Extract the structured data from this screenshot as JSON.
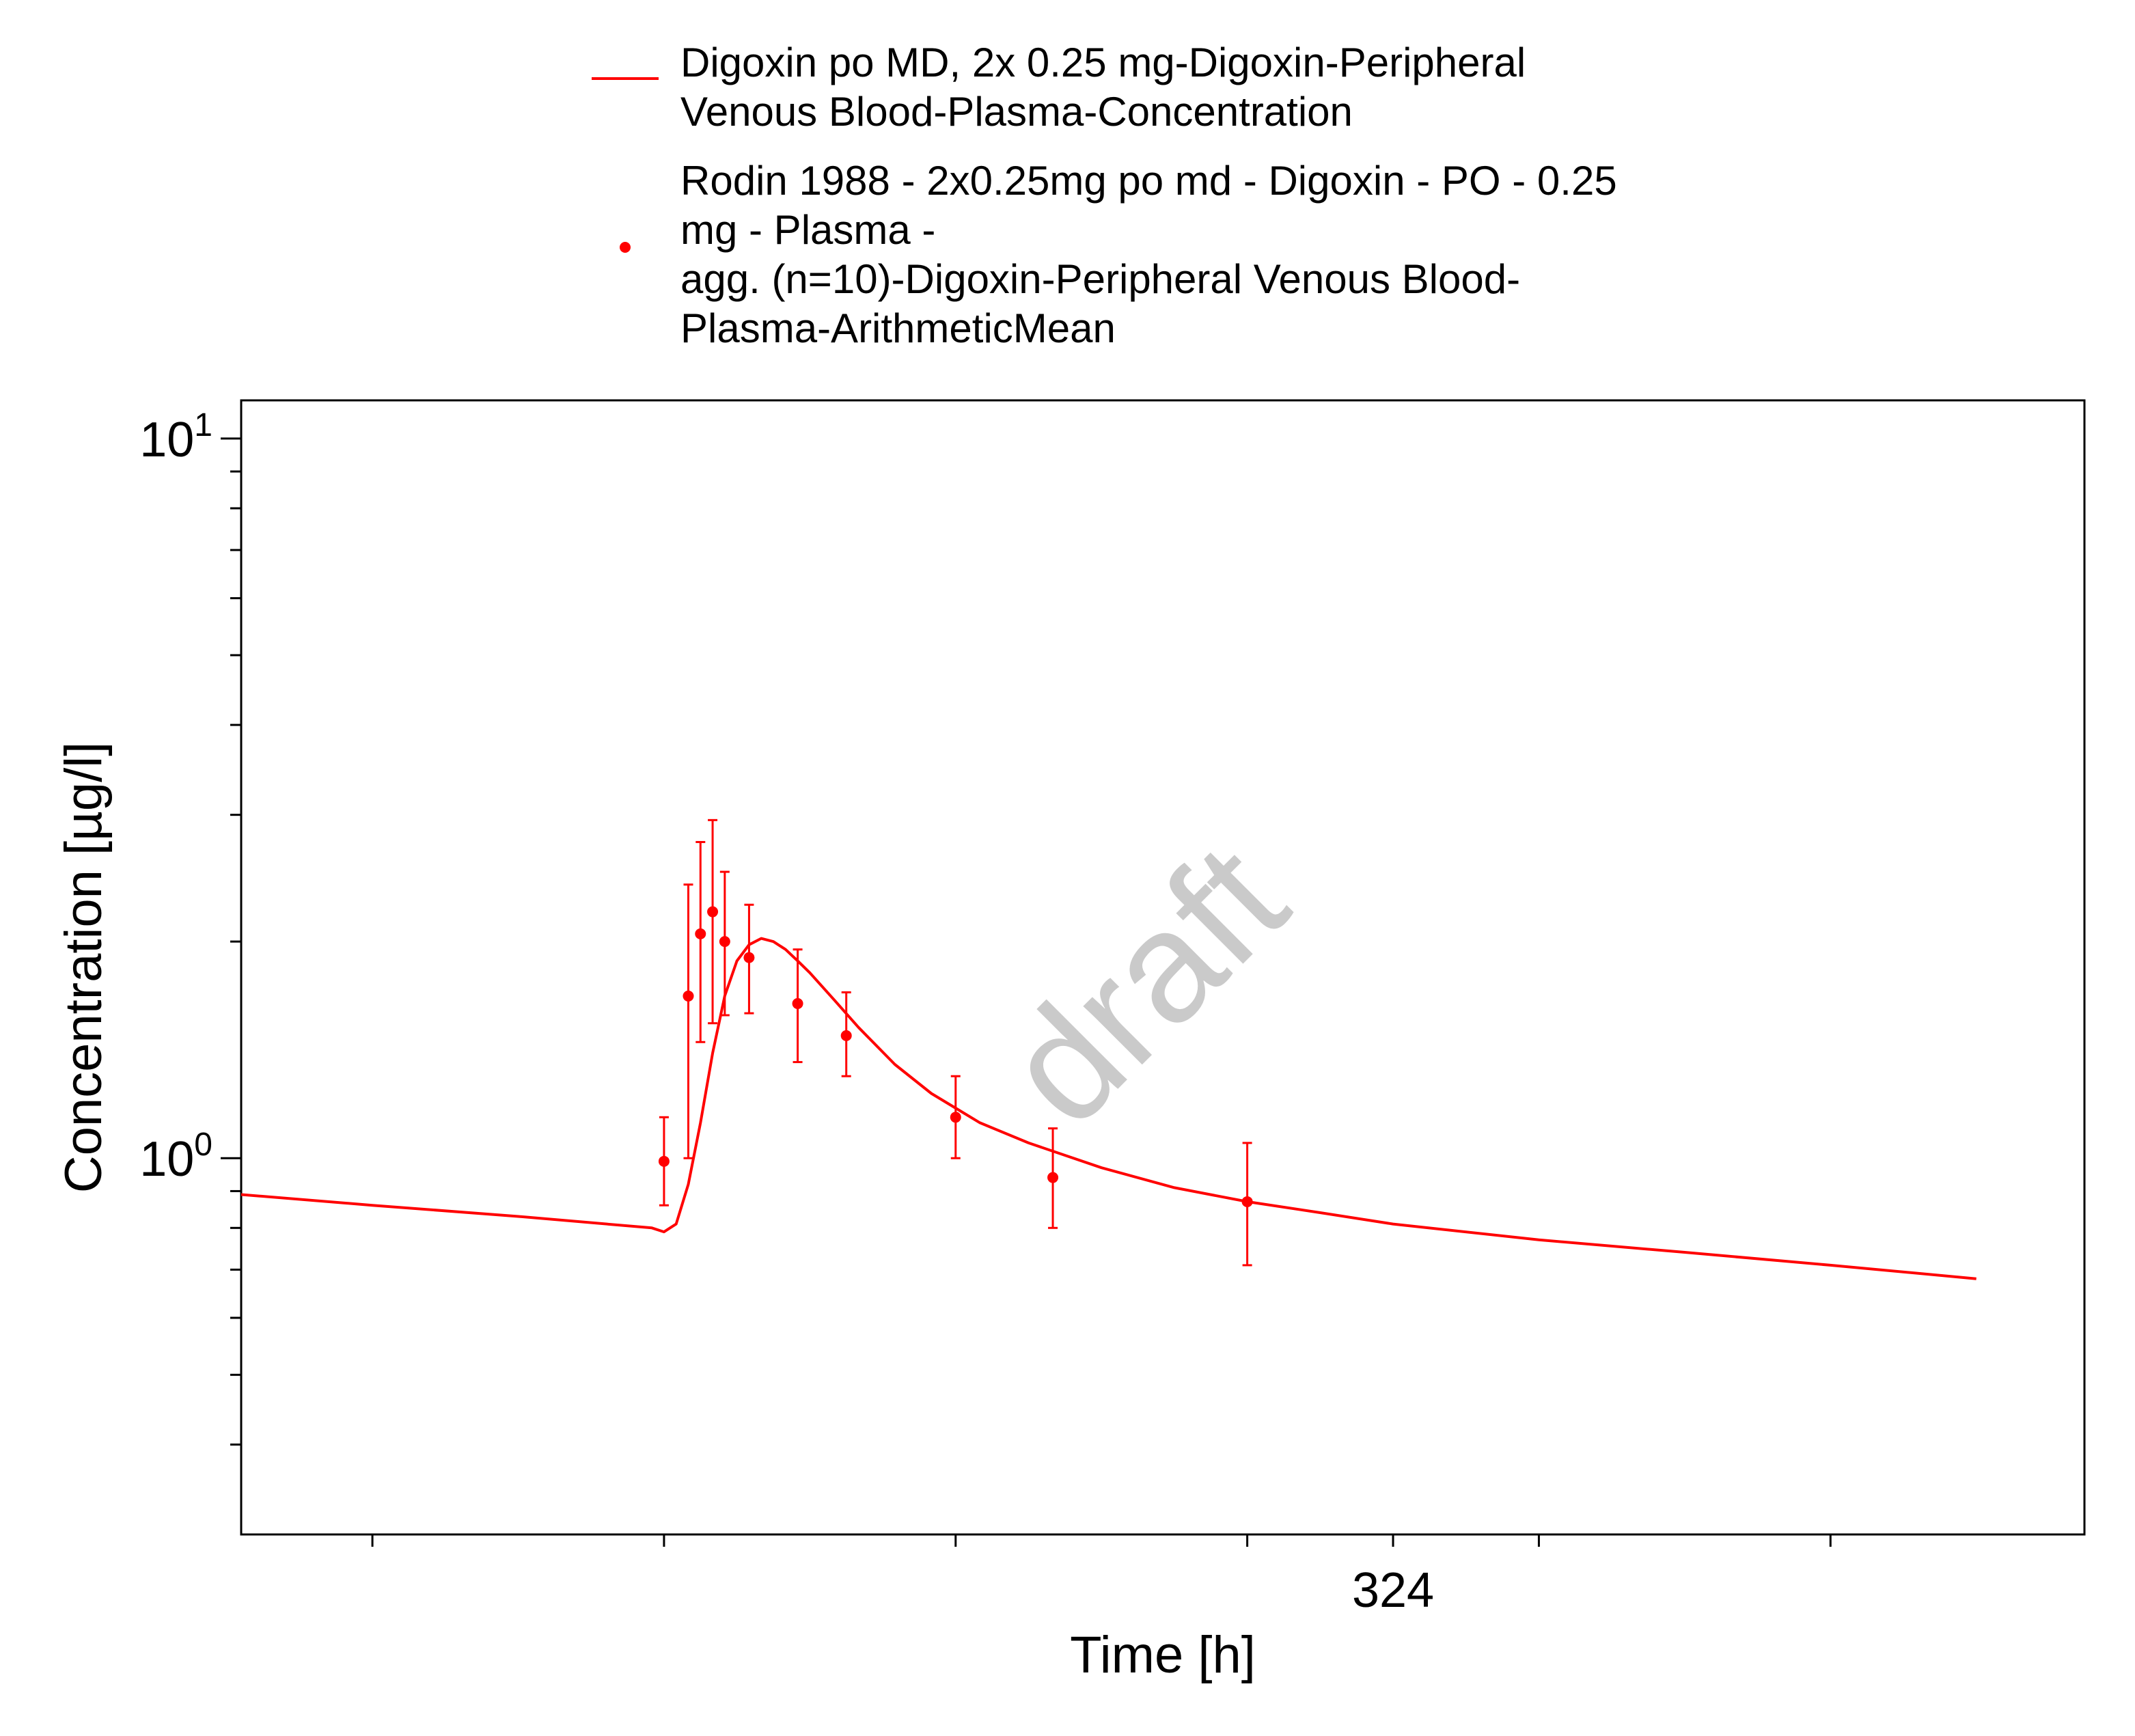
{
  "chart_data": {
    "type": "line",
    "xlabel": "Time [h]",
    "ylabel": "Concentration [µg/l]",
    "y_scale": "log",
    "ylim": [
      0.3,
      11.3
    ],
    "xlim": [
      229.2,
      380.9
    ],
    "x_ticks": [
      {
        "value": 240,
        "label": ""
      },
      {
        "value": 264,
        "label": ""
      },
      {
        "value": 288,
        "label": ""
      },
      {
        "value": 312,
        "label": ""
      },
      {
        "value": 324,
        "label": "324"
      },
      {
        "value": 336,
        "label": ""
      },
      {
        "value": 360,
        "label": ""
      }
    ],
    "y_major_ticks": [
      {
        "value": 1,
        "base": "10",
        "exp": "0"
      },
      {
        "value": 10,
        "base": "10",
        "exp": "1"
      }
    ],
    "y_minor_ticks": [
      0.4,
      0.5,
      0.6,
      0.7,
      0.8,
      0.9,
      2,
      3,
      4,
      5,
      6,
      7,
      8,
      9
    ],
    "grid": false,
    "legend_placement": "top",
    "watermark": "draft",
    "color": "#ff0000",
    "series": [
      {
        "name": "Digoxin po MD, 2x 0.25 mg-Digoxin-Peripheral Venous Blood-Plasma-Concentration",
        "legend_lines": [
          "Digoxin po MD, 2x 0.25 mg-Digoxin-Peripheral",
          "Venous Blood-Plasma-Concentration"
        ],
        "style": "line",
        "x": [
          229.2,
          240,
          252,
          263,
          264,
          265,
          266,
          267,
          268,
          269,
          270,
          271,
          272,
          273,
          274,
          275,
          276,
          278,
          280,
          283,
          286,
          290,
          294,
          300,
          306,
          312,
          318,
          324,
          336,
          348,
          360,
          372
        ],
        "y": [
          0.89,
          0.86,
          0.83,
          0.8,
          0.79,
          0.81,
          0.92,
          1.12,
          1.4,
          1.68,
          1.88,
          1.98,
          2.02,
          2.0,
          1.95,
          1.88,
          1.81,
          1.66,
          1.52,
          1.35,
          1.23,
          1.12,
          1.05,
          0.97,
          0.91,
          0.87,
          0.84,
          0.81,
          0.77,
          0.74,
          0.71,
          0.68
        ]
      },
      {
        "name": "Rodin 1988 - 2x0.25mg po md - Digoxin - PO - 0.25 mg - Plasma - agg. (n=10)-Digoxin-Peripheral Venous Blood-Plasma-ArithmeticMean",
        "legend_lines": [
          "Rodin 1988 - 2x0.25mg po md - Digoxin - PO - 0.25",
          "mg - Plasma -",
          "agg. (n=10)-Digoxin-Peripheral Venous Blood-",
          "Plasma-ArithmeticMean"
        ],
        "style": "markers_with_error_bars",
        "x": [
          264,
          266,
          267,
          268,
          269,
          271,
          275,
          279,
          288,
          296,
          312
        ],
        "y": [
          0.99,
          1.68,
          2.05,
          2.2,
          2.0,
          1.9,
          1.64,
          1.48,
          1.14,
          0.94,
          0.87
        ],
        "y_low": [
          0.86,
          1.0,
          1.45,
          1.54,
          1.58,
          1.59,
          1.36,
          1.3,
          1.0,
          0.8,
          0.71
        ],
        "y_high": [
          1.14,
          2.4,
          2.75,
          2.95,
          2.5,
          2.25,
          1.95,
          1.7,
          1.3,
          1.1,
          1.05
        ]
      }
    ]
  }
}
